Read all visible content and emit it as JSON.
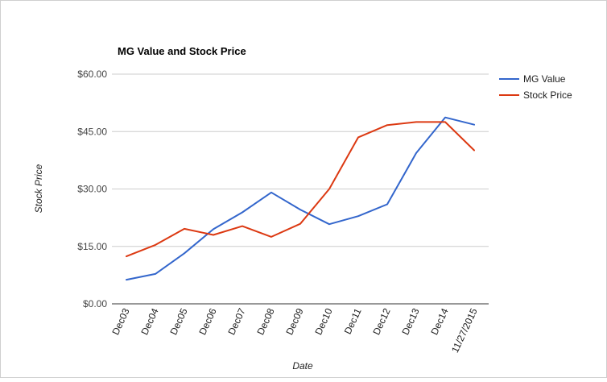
{
  "chart_data": {
    "type": "line",
    "title": "MG Value and Stock Price",
    "xlabel": "Date",
    "ylabel": "Stock Price",
    "categories": [
      "Dec03",
      "Dec04",
      "Dec05",
      "Dec06",
      "Dec07",
      "Dec08",
      "Dec09",
      "Dec10",
      "Dec11",
      "Dec12",
      "Dec13",
      "Dec14",
      "11/27/2015"
    ],
    "yticks": [
      "$0.00",
      "$15.00",
      "$30.00",
      "$45.00",
      "$60.00"
    ],
    "ylim": [
      0,
      60
    ],
    "grid": true,
    "legend_position": "right",
    "series": [
      {
        "name": "MG Value",
        "color": "#3366cc",
        "values": [
          6.3,
          7.8,
          13.2,
          19.5,
          23.9,
          29.1,
          24.6,
          20.8,
          22.9,
          26.0,
          39.4,
          48.7,
          46.8
        ]
      },
      {
        "name": "Stock Price",
        "color": "#dc3912",
        "values": [
          12.4,
          15.4,
          19.6,
          18.0,
          20.3,
          17.5,
          20.9,
          30.0,
          43.5,
          46.7,
          47.5,
          47.5,
          40.1
        ]
      }
    ]
  }
}
